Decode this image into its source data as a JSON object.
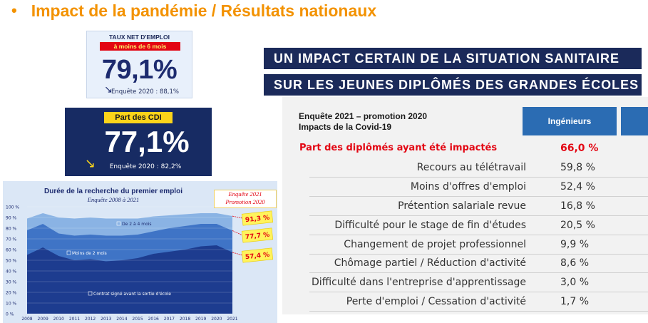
{
  "slide_title": "Impact de la pandémie / Résultats nationaux",
  "bullet_glyph": "•",
  "card_emploi": {
    "label": "TAUX NET D'EMPLOI",
    "sublabel": "à moins de 6 mois",
    "value": "79,1%",
    "previous": "Enquête 2020 : 88,1%"
  },
  "card_cdi": {
    "label": "Part des CDI",
    "value": "77,1%",
    "previous": "Enquête 2020 : 82,2%"
  },
  "chart_data": {
    "type": "area",
    "title": "Durée de la recherche du premier emploi",
    "subtitle": "Enquête 2008 à 2021",
    "x": [
      "2008",
      "2009",
      "2010",
      "2011",
      "2012",
      "2013",
      "2014",
      "2015",
      "2016",
      "2017",
      "2018",
      "2019",
      "2020",
      "2021"
    ],
    "yticks": [
      "0 %",
      "10 %",
      "20 %",
      "30 %",
      "40 %",
      "50 %",
      "60 %",
      "70 %",
      "80 %",
      "90 %",
      "100 %"
    ],
    "ylim": [
      0,
      100
    ],
    "series": [
      {
        "name": "Contrat signé avant la sortie d'école",
        "values": [
          55,
          62,
          54,
          50,
          51,
          49,
          50,
          52,
          56,
          58,
          60,
          63,
          64,
          57.4
        ],
        "color": "#1d3c8f"
      },
      {
        "name": "Moins de 2 mois",
        "values": [
          78,
          84,
          75,
          73,
          74,
          73,
          73,
          74,
          77,
          80,
          82,
          84,
          84,
          77.7
        ],
        "color": "#3f74c6"
      },
      {
        "name": "De 2 à 4 mois",
        "values": [
          89,
          94,
          90,
          89,
          90,
          89,
          89,
          89,
          91,
          92,
          93,
          94,
          94,
          91.3
        ],
        "color": "#8ab3e4"
      }
    ],
    "callout_header": "Enquête 2021\nPromotion 2020",
    "callouts": [
      "91,3 %",
      "77,7 %",
      "57,4 %"
    ],
    "grid": true
  },
  "banner": {
    "line1": "UN IMPACT CERTAIN DE LA SITUATION SANITAIRE",
    "line2": "SUR LES JEUNES DIPLÔMÉS DES GRANDES ÉCOLES"
  },
  "table": {
    "header_line1": "Enquête 2021 – promotion 2020",
    "header_line2": "Impacts de la Covid-19",
    "column": "Ingénieurs",
    "rows": [
      {
        "label": "Part des diplômés ayant été impactés",
        "value": "66,0 %",
        "highlight": true
      },
      {
        "label": "Recours au télétravail",
        "value": "59,8 %"
      },
      {
        "label": "Moins d'offres d'emploi",
        "value": "52,4 %"
      },
      {
        "label": "Prétention salariale revue",
        "value": "16,8 %"
      },
      {
        "label": "Difficulté pour le stage de fin d'études",
        "value": "20,5 %"
      },
      {
        "label": "Changement de projet professionnel",
        "value": "9,9 %"
      },
      {
        "label": "Chômage partiel / Réduction d'activité",
        "value": "8,6 %"
      },
      {
        "label": "Difficulté dans l'entreprise d'apprentissage",
        "value": "3,0 %"
      },
      {
        "label": "Perte d'emploi / Cessation d'activité",
        "value": "1,7 %"
      }
    ]
  }
}
